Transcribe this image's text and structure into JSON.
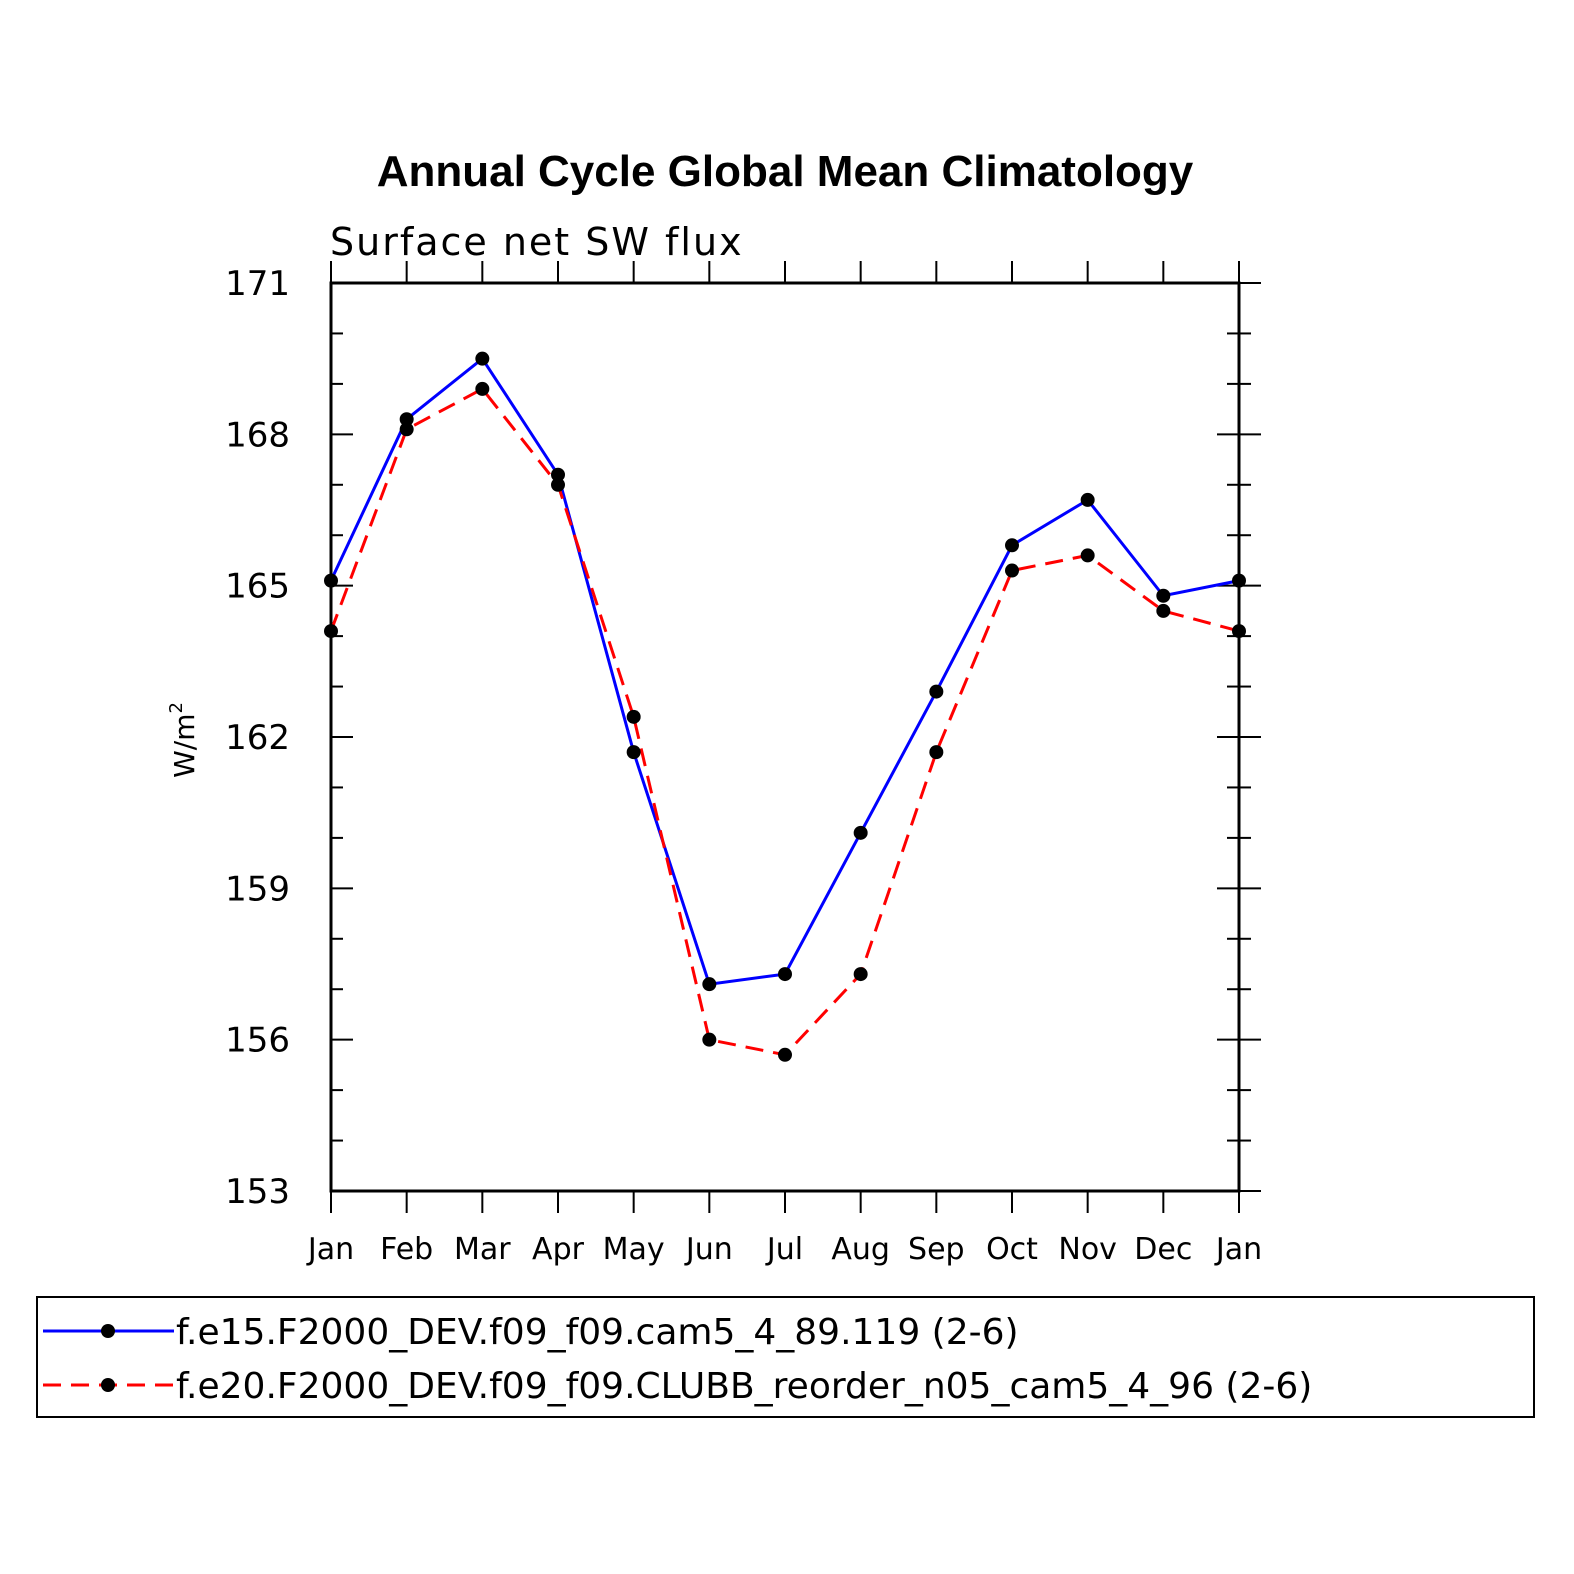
{
  "chart_data": {
    "type": "line",
    "title": "Annual Cycle Global Mean Climatology",
    "subtitle": "Surface net SW flux",
    "ylabel": "W/m",
    "ylabel_sup": "2",
    "xlabel": "",
    "categories": [
      "Jan",
      "Feb",
      "Mar",
      "Apr",
      "May",
      "Jun",
      "Jul",
      "Aug",
      "Sep",
      "Oct",
      "Nov",
      "Dec",
      "Jan"
    ],
    "ylim": [
      153,
      171
    ],
    "yticks": [
      153,
      156,
      159,
      162,
      165,
      168,
      171
    ],
    "grid": false,
    "legend_position": "bottom",
    "series": [
      {
        "name": "f.e15.F2000_DEV.f09_f09.cam5_4_89.119 (2-6)",
        "color": "#0000ff",
        "dash": "solid",
        "marker": "filled-circle",
        "values": [
          165.1,
          168.3,
          169.5,
          167.2,
          161.7,
          157.1,
          157.3,
          160.1,
          162.9,
          165.8,
          166.7,
          164.8,
          165.1
        ]
      },
      {
        "name": "f.e20.F2000_DEV.f09_f09.CLUBB_reorder_n05_cam5_4_96 (2-6)",
        "color": "#ff0000",
        "dash": "dashed",
        "marker": "filled-circle",
        "values": [
          164.1,
          168.1,
          168.9,
          167.0,
          162.4,
          156.0,
          155.7,
          157.3,
          161.7,
          165.3,
          165.6,
          164.5,
          164.1
        ]
      }
    ]
  }
}
